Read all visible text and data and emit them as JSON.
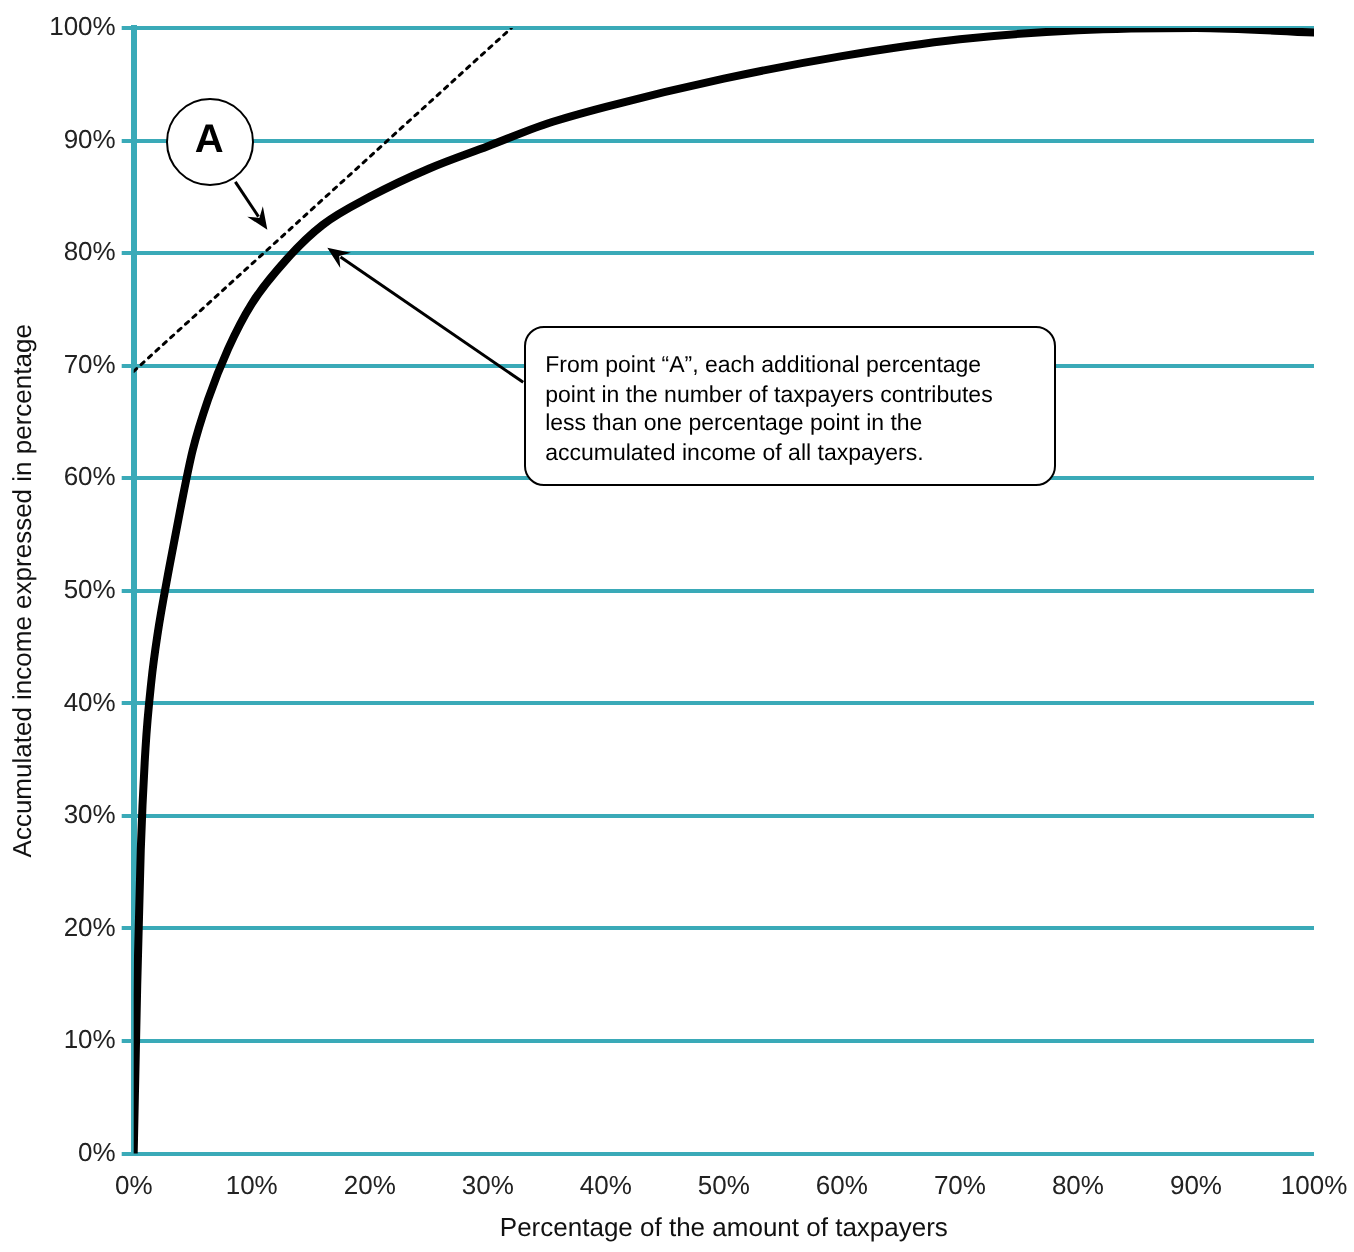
{
  "chart_data": {
    "type": "line",
    "xlabel": "Percentage of the amount of taxpayers",
    "ylabel": "Accumulated income expressed in percentage",
    "xlim": [
      0,
      100
    ],
    "xticks": [
      {
        "value": 0,
        "label": "0%"
      },
      {
        "value": 10,
        "label": "10%"
      },
      {
        "value": 20,
        "label": "20%"
      },
      {
        "value": 30,
        "label": "30%"
      },
      {
        "value": 40,
        "label": "40%"
      },
      {
        "value": 50,
        "label": "50%"
      },
      {
        "value": 60,
        "label": "60%"
      },
      {
        "value": 70,
        "label": "70%"
      },
      {
        "value": 80,
        "label": "80%"
      },
      {
        "value": 90,
        "label": "90%"
      },
      {
        "value": 100,
        "label": "100%"
      }
    ],
    "ylim": [
      0,
      100
    ],
    "yticks": [
      {
        "value": 0,
        "label": "0%"
      },
      {
        "value": 10,
        "label": "10%"
      },
      {
        "value": 20,
        "label": "20%"
      },
      {
        "value": 30,
        "label": "30%"
      },
      {
        "value": 40,
        "label": "40%"
      },
      {
        "value": 50,
        "label": "50%"
      },
      {
        "value": 60,
        "label": "60%"
      },
      {
        "value": 70,
        "label": "70%"
      },
      {
        "value": 80,
        "label": "80%"
      },
      {
        "value": 90,
        "label": "90%"
      },
      {
        "value": 100,
        "label": "100%"
      }
    ],
    "grid": "y",
    "legend": false,
    "marker": "none",
    "series": [
      {
        "color": "#000000",
        "line_style": "solid",
        "x": [
          0,
          0.3,
          0.6,
          1,
          1.5,
          2,
          3,
          4,
          5,
          6.3,
          8,
          10,
          13,
          16,
          20,
          25,
          30,
          35,
          40,
          50,
          60,
          70,
          80,
          90,
          100
        ],
        "values": [
          0,
          15,
          27,
          36,
          42,
          46,
          52,
          57.5,
          62.5,
          67,
          71.5,
          75.5,
          79.5,
          82.5,
          85,
          87.5,
          89.5,
          91.5,
          93,
          95.5,
          97.5,
          99,
          99.8,
          100,
          99.6
        ]
      },
      {
        "type": "line",
        "color": "#000000",
        "line_style": "dotted",
        "x": [
          0,
          32
        ],
        "values": [
          69.5,
          100
        ]
      }
    ],
    "annotations": [
      {
        "text": "A",
        "x": 12,
        "y": 81
      },
      "From point “A”, each additional percentage point in the number of taxpayers contributes less than one percentage point in the accumulated income of all taxpayers."
    ]
  }
}
